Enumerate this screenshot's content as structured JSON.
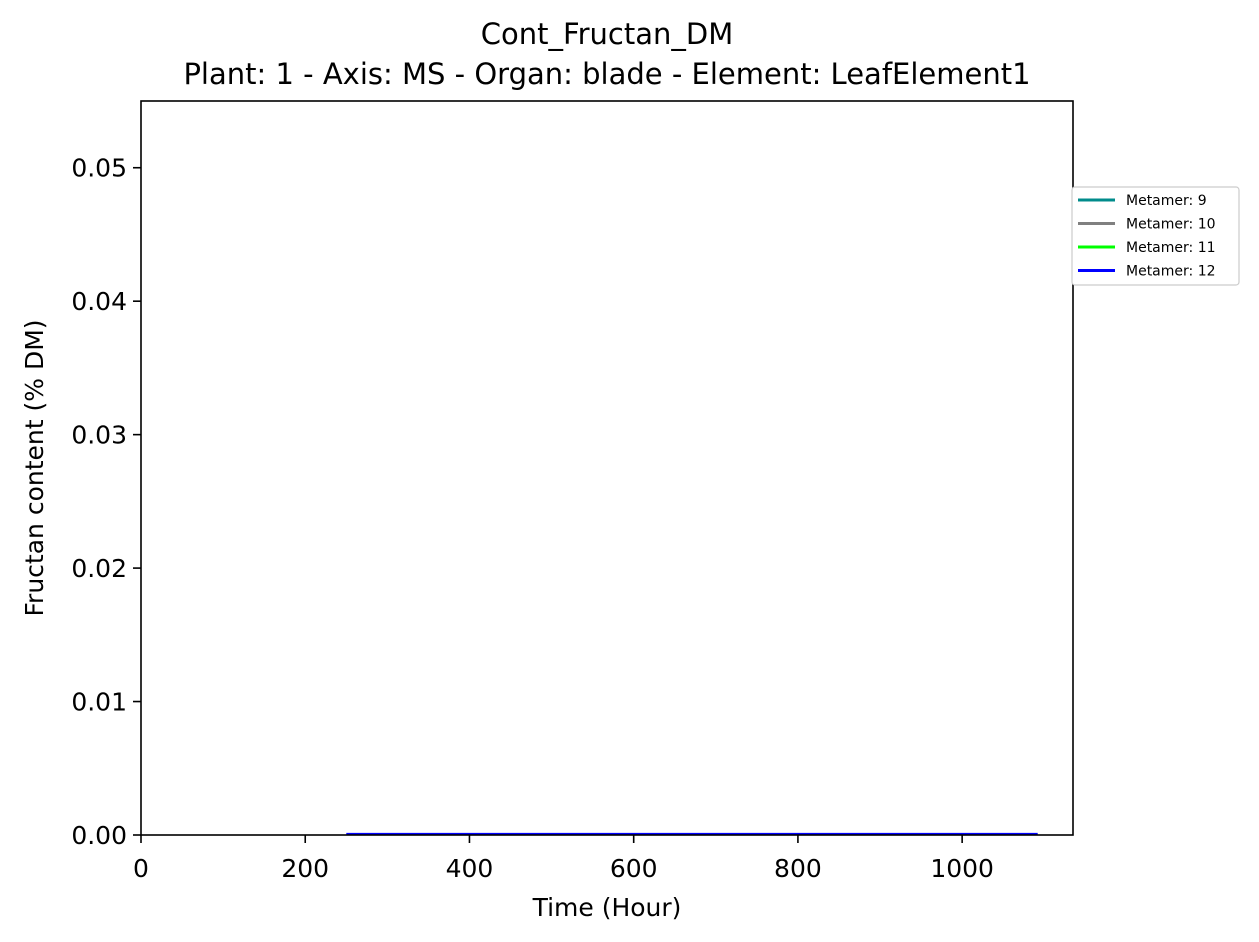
{
  "chart_data": {
    "type": "line",
    "title": "Cont_Fructan_DM",
    "subtitle": "Plant: 1 - Axis: MS - Organ: blade - Element: LeafElement1",
    "xlabel": "Time (Hour)",
    "ylabel": "Fructan content (% DM)",
    "xlim": [
      0,
      1135
    ],
    "ylim": [
      0,
      0.055
    ],
    "xticks": [
      0,
      200,
      400,
      600,
      800,
      1000
    ],
    "xtick_labels": [
      "0",
      "200",
      "400",
      "600",
      "800",
      "1000"
    ],
    "yticks": [
      0,
      0.01,
      0.02,
      0.03,
      0.04,
      0.05
    ],
    "ytick_labels": [
      "0.00",
      "0.01",
      "0.02",
      "0.03",
      "0.04",
      "0.05"
    ],
    "grid": false,
    "legend_placement": "outside-right-top",
    "series": [
      {
        "name": "Metamer: 9",
        "color": "#008b8b",
        "x": [],
        "y": []
      },
      {
        "name": "Metamer: 10",
        "color": "#808080",
        "x": [],
        "y": []
      },
      {
        "name": "Metamer: 11",
        "color": "#00ff00",
        "x": [],
        "y": []
      },
      {
        "name": "Metamer: 12",
        "color": "#0000ff",
        "x": [
          250,
          400,
          600,
          800,
          1000,
          1092
        ],
        "y": [
          0,
          0,
          0,
          0,
          0,
          0
        ]
      }
    ]
  }
}
